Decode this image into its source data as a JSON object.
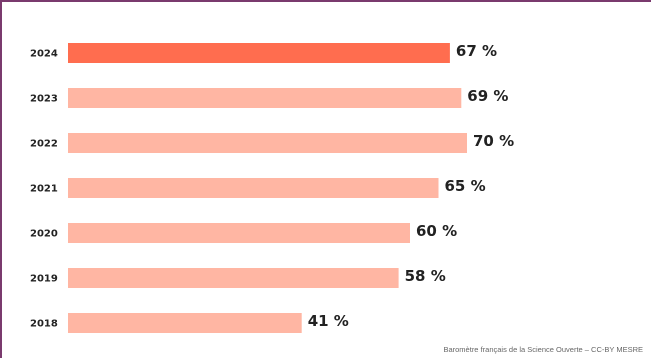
{
  "chart_data": {
    "type": "bar",
    "orientation": "horizontal",
    "categories": [
      "2024",
      "2023",
      "2022",
      "2021",
      "2020",
      "2019",
      "2018"
    ],
    "values": [
      67,
      69,
      70,
      65,
      60,
      58,
      41
    ],
    "value_labels": [
      "67 %",
      "69 %",
      "70 %",
      "65 %",
      "60 %",
      "58 %",
      "41 %"
    ],
    "highlight_index": 0,
    "colors": {
      "highlight": "#ff6d4f",
      "default": "#ffb6a3"
    },
    "xlim": [
      0,
      100
    ],
    "grid": false,
    "legend": "none"
  },
  "source": "Baromètre français de la Science Ouverte – CC-BY MESRE",
  "colors": {
    "frame": "#7a3a6e",
    "text": "#222222",
    "source_text": "#666666"
  }
}
